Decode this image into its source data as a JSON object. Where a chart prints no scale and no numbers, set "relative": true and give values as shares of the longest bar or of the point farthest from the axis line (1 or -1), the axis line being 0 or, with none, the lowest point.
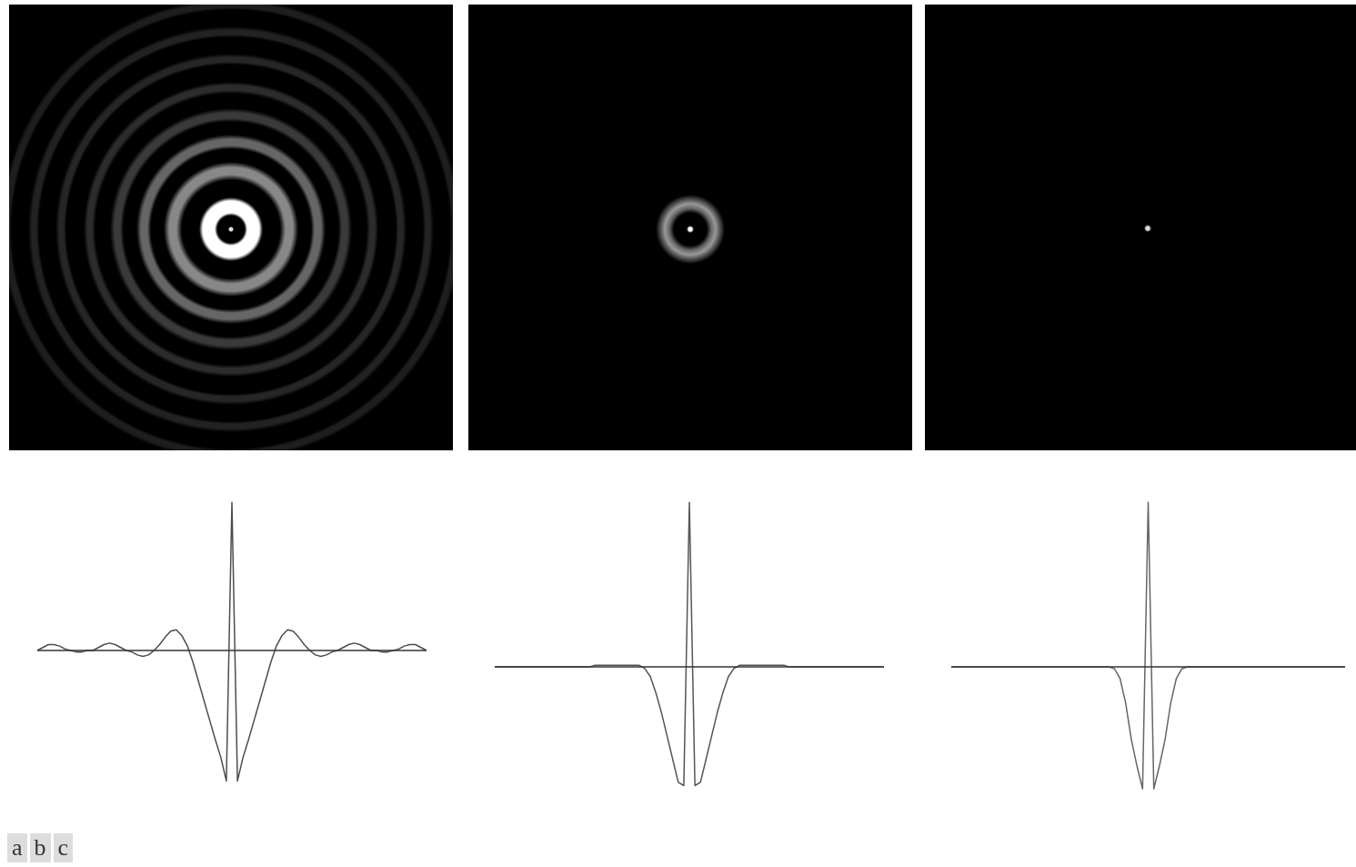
{
  "chart_data": [
    {
      "type": "line",
      "relative": true,
      "categories": [
        null,
        null,
        null,
        null,
        null,
        null,
        null,
        null,
        null,
        null,
        null,
        null,
        null,
        null,
        null,
        null,
        null,
        null,
        null,
        null,
        null,
        null,
        null,
        null,
        null,
        null,
        null,
        null,
        null,
        null,
        null,
        null,
        null,
        null,
        null,
        null,
        null,
        null,
        null,
        null,
        null,
        null,
        null,
        null,
        null,
        null,
        null,
        null,
        null,
        null,
        null,
        null,
        null,
        null,
        null,
        null,
        null,
        null,
        null,
        null,
        null,
        null,
        null,
        null,
        null,
        null,
        null,
        null,
        null,
        null,
        null
      ],
      "series": [
        {
          "color": "#4d4d4d",
          "values": [
            0,
            0.02,
            0.04,
            0.04,
            0.03,
            0.01,
            0,
            -0.01,
            -0.01,
            0,
            0,
            0.02,
            0.04,
            0.05,
            0.04,
            0.02,
            0,
            -0.01,
            -0.03,
            -0.04,
            -0.03,
            0,
            0.04,
            0.09,
            0.13,
            0.14,
            0.1,
            0.03,
            -0.08,
            -0.21,
            -0.34,
            -0.47,
            -0.6,
            -0.72,
            -0.88,
            1,
            -0.88,
            -0.72,
            -0.6,
            -0.47,
            -0.34,
            -0.21,
            -0.08,
            0.03,
            0.1,
            0.14,
            0.13,
            0.09,
            0.04,
            0,
            -0.03,
            -0.04,
            -0.03,
            -0.01,
            0,
            0.02,
            0.04,
            0.05,
            0.04,
            0.02,
            0,
            0,
            -0.01,
            -0.01,
            0,
            0.01,
            0.03,
            0.04,
            0.04,
            0.02,
            0
          ]
        }
      ]
    },
    {
      "type": "line",
      "relative": true,
      "categories": [
        null,
        null,
        null,
        null,
        null,
        null,
        null,
        null,
        null,
        null,
        null,
        null,
        null,
        null,
        null,
        null,
        null,
        null,
        null,
        null,
        null,
        null,
        null,
        null,
        null,
        null,
        null,
        null,
        null,
        null,
        null,
        null,
        null,
        null,
        null,
        null,
        null,
        null,
        null,
        null,
        null,
        null,
        null,
        null,
        null,
        null,
        null,
        null,
        null,
        null,
        null,
        null,
        null,
        null,
        null,
        null,
        null,
        null,
        null,
        null,
        null,
        null,
        null,
        null,
        null,
        null,
        null,
        null,
        null,
        null,
        null
      ],
      "series": [
        {
          "color": "#555555",
          "values": [
            0,
            0,
            0,
            0,
            0,
            0,
            0,
            0,
            0,
            0,
            0,
            0,
            0,
            0,
            0,
            0,
            0,
            0,
            0.01,
            0.01,
            0.01,
            0.01,
            0.01,
            0.01,
            0.01,
            0.01,
            0.01,
            -0.01,
            -0.06,
            -0.16,
            -0.28,
            -0.42,
            -0.56,
            -0.7,
            -0.72,
            1,
            -0.72,
            -0.7,
            -0.56,
            -0.42,
            -0.28,
            -0.16,
            -0.06,
            -0.01,
            0.01,
            0.01,
            0.01,
            0.01,
            0.01,
            0.01,
            0.01,
            0.01,
            0.01,
            0,
            0,
            0,
            0,
            0,
            0,
            0,
            0,
            0,
            0,
            0,
            0,
            0,
            0,
            0,
            0,
            0,
            0
          ]
        }
      ]
    },
    {
      "type": "line",
      "relative": true,
      "categories": [
        null,
        null,
        null,
        null,
        null,
        null,
        null,
        null,
        null,
        null,
        null,
        null,
        null,
        null,
        null,
        null,
        null,
        null,
        null,
        null,
        null,
        null,
        null,
        null,
        null,
        null,
        null,
        null,
        null,
        null,
        null,
        null,
        null,
        null,
        null,
        null,
        null,
        null,
        null,
        null,
        null,
        null,
        null,
        null,
        null,
        null,
        null,
        null,
        null,
        null,
        null,
        null,
        null,
        null,
        null,
        null,
        null,
        null,
        null,
        null,
        null,
        null,
        null,
        null,
        null,
        null,
        null,
        null,
        null,
        null,
        null
      ],
      "series": [
        {
          "color": "#666666",
          "values": [
            0,
            0,
            0,
            0,
            0,
            0,
            0,
            0,
            0,
            0,
            0,
            0,
            0,
            0,
            0,
            0,
            0,
            0,
            0,
            0,
            0,
            0,
            0,
            0,
            0,
            0,
            0,
            0,
            0,
            -0.01,
            -0.07,
            -0.22,
            -0.44,
            -0.6,
            -0.74,
            1,
            -0.74,
            -0.6,
            -0.44,
            -0.22,
            -0.07,
            -0.01,
            0,
            0,
            0,
            0,
            0,
            0,
            0,
            0,
            0,
            0,
            0,
            0,
            0,
            0,
            0,
            0,
            0,
            0,
            0,
            0,
            0,
            0,
            0,
            0,
            0,
            0,
            0,
            0,
            0
          ]
        }
      ]
    },
    {
      "type": "other",
      "annotations": [
        "a",
        "b",
        "c"
      ]
    }
  ]
}
